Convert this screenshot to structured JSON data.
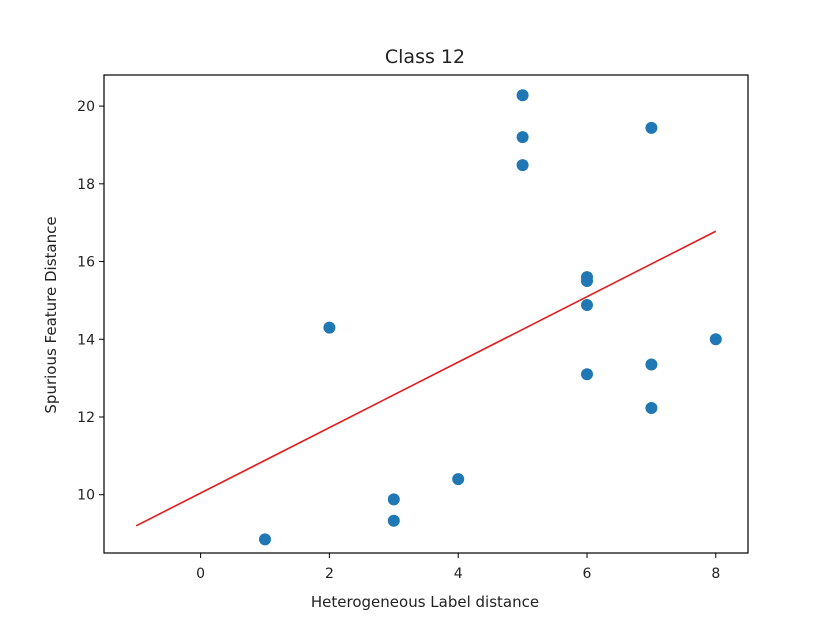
{
  "chart_data": {
    "type": "scatter",
    "title": "Class 12",
    "xlabel": "Heterogeneous Label distance",
    "ylabel": "Spurious Feature Distance",
    "xlim": [
      -1.5,
      8.5
    ],
    "ylim": [
      8.5,
      20.8
    ],
    "xticks": [
      0,
      2,
      4,
      6,
      8
    ],
    "yticks": [
      10,
      12,
      14,
      16,
      18,
      20
    ],
    "grid": false,
    "points": [
      {
        "x": 1,
        "y": 8.85
      },
      {
        "x": 2,
        "y": 14.3
      },
      {
        "x": 3,
        "y": 9.88
      },
      {
        "x": 3,
        "y": 9.33
      },
      {
        "x": 4,
        "y": 10.4
      },
      {
        "x": 5,
        "y": 20.28
      },
      {
        "x": 5,
        "y": 19.2
      },
      {
        "x": 5,
        "y": 18.48
      },
      {
        "x": 6,
        "y": 15.6
      },
      {
        "x": 6,
        "y": 15.5
      },
      {
        "x": 6,
        "y": 14.88
      },
      {
        "x": 6,
        "y": 13.1
      },
      {
        "x": 7,
        "y": 19.44
      },
      {
        "x": 7,
        "y": 13.35
      },
      {
        "x": 7,
        "y": 12.23
      },
      {
        "x": 8,
        "y": 14.0
      }
    ],
    "fit_line": {
      "x": [
        -1,
        8
      ],
      "y": [
        9.2,
        16.78
      ]
    },
    "colors": {
      "points": "#1f77b4",
      "fit_line": "#e41a1c",
      "axes": "#000000"
    }
  }
}
